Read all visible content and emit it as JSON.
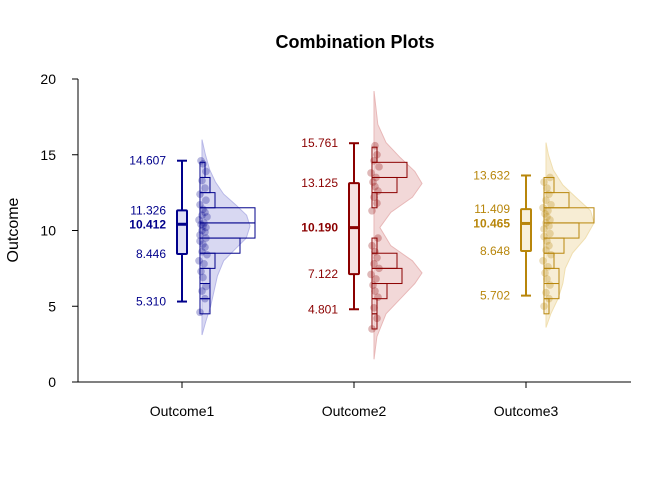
{
  "chart_data": {
    "type": "box-violin-histogram",
    "title": "Combination Plots",
    "ylabel": "Outcome",
    "xlabel": "",
    "ylim": [
      0,
      20
    ],
    "yticks": [
      0,
      5,
      10,
      15,
      20
    ],
    "grid": false,
    "categories": [
      "Outcome1",
      "Outcome2",
      "Outcome3"
    ],
    "series": [
      {
        "name": "Outcome1",
        "color": "#00008B",
        "fill": "#B8B8E8",
        "stats": {
          "max": "14.607",
          "q3": "11.326",
          "median": "10.412",
          "q1": "8.446",
          "min": "5.310"
        },
        "values": {
          "max": 14.607,
          "q3": 11.326,
          "median": 10.412,
          "q1": 8.446,
          "min": 5.31
        },
        "points": [
          4.6,
          5.5,
          6.0,
          6.3,
          6.9,
          7.3,
          7.8,
          8.0,
          8.4,
          8.6,
          8.9,
          9.1,
          9.3,
          9.5,
          9.7,
          9.9,
          10.0,
          10.2,
          10.3,
          10.4,
          10.5,
          10.7,
          10.9,
          11.0,
          11.2,
          11.4,
          11.7,
          12.0,
          12.4,
          12.8,
          13.3,
          13.9,
          14.4,
          14.6
        ],
        "hist": [
          {
            "from": 4.5,
            "to": 5.5,
            "count": 2
          },
          {
            "from": 5.5,
            "to": 6.5,
            "count": 2
          },
          {
            "from": 6.5,
            "to": 7.5,
            "count": 2
          },
          {
            "from": 7.5,
            "to": 8.5,
            "count": 3
          },
          {
            "from": 8.5,
            "to": 9.5,
            "count": 8
          },
          {
            "from": 9.5,
            "to": 10.5,
            "count": 11
          },
          {
            "from": 10.5,
            "to": 11.5,
            "count": 11
          },
          {
            "from": 11.5,
            "to": 12.5,
            "count": 3
          },
          {
            "from": 12.5,
            "to": 13.5,
            "count": 2
          },
          {
            "from": 13.5,
            "to": 14.5,
            "count": 1
          }
        ],
        "density": [
          [
            3.1,
            0.0
          ],
          [
            4.0,
            0.08
          ],
          [
            5.0,
            0.18
          ],
          [
            6.0,
            0.25
          ],
          [
            7.0,
            0.32
          ],
          [
            8.0,
            0.45
          ],
          [
            8.8,
            0.7
          ],
          [
            9.5,
            0.92
          ],
          [
            10.3,
            1.0
          ],
          [
            11.0,
            0.93
          ],
          [
            11.7,
            0.7
          ],
          [
            12.4,
            0.45
          ],
          [
            13.2,
            0.28
          ],
          [
            14.0,
            0.16
          ],
          [
            15.0,
            0.07
          ],
          [
            16.0,
            0.0
          ]
        ]
      },
      {
        "name": "Outcome2",
        "color": "#8B0000",
        "fill": "#E8B8B8",
        "stats": {
          "max": "15.761",
          "q3": "13.125",
          "median": "10.190",
          "q1": "7.122",
          "min": "4.801"
        },
        "values": {
          "max": 15.761,
          "q3": 13.125,
          "median": 10.19,
          "q1": 7.122,
          "min": 4.801
        },
        "points": [
          3.5,
          4.2,
          4.9,
          5.6,
          6.0,
          6.4,
          6.8,
          7.1,
          7.5,
          7.8,
          8.2,
          8.6,
          9.0,
          9.5,
          11.3,
          11.8,
          12.2,
          12.6,
          12.9,
          13.2,
          13.5,
          13.8,
          14.2,
          14.6,
          15.0,
          15.6
        ],
        "hist": [
          {
            "from": 3.5,
            "to": 4.5,
            "count": 1
          },
          {
            "from": 4.5,
            "to": 5.5,
            "count": 1
          },
          {
            "from": 5.5,
            "to": 6.5,
            "count": 3
          },
          {
            "from": 6.5,
            "to": 7.5,
            "count": 6
          },
          {
            "from": 7.5,
            "to": 8.5,
            "count": 5
          },
          {
            "from": 8.5,
            "to": 9.5,
            "count": 1
          },
          {
            "from": 11.5,
            "to": 12.5,
            "count": 1
          },
          {
            "from": 12.5,
            "to": 13.5,
            "count": 5
          },
          {
            "from": 13.5,
            "to": 14.5,
            "count": 7
          },
          {
            "from": 14.5,
            "to": 15.5,
            "count": 1
          }
        ],
        "density": [
          [
            1.5,
            0.0
          ],
          [
            3.0,
            0.06
          ],
          [
            4.5,
            0.25
          ],
          [
            5.5,
            0.55
          ],
          [
            6.5,
            0.85
          ],
          [
            7.2,
            1.0
          ],
          [
            8.0,
            0.8
          ],
          [
            9.0,
            0.35
          ],
          [
            10.2,
            0.12
          ],
          [
            11.2,
            0.35
          ],
          [
            12.2,
            0.8
          ],
          [
            13.1,
            1.0
          ],
          [
            13.9,
            0.85
          ],
          [
            14.8,
            0.55
          ],
          [
            15.8,
            0.25
          ],
          [
            17.0,
            0.08
          ],
          [
            19.2,
            0.0
          ]
        ]
      },
      {
        "name": "Outcome3",
        "color": "#B8860B",
        "fill": "#F0DFB0",
        "stats": {
          "max": "13.632",
          "q3": "11.409",
          "median": "10.465",
          "q1": "8.648",
          "min": "5.702"
        },
        "values": {
          "max": 13.632,
          "q3": 11.409,
          "median": 10.465,
          "q1": 8.648,
          "min": 5.702
        },
        "points": [
          5.0,
          5.5,
          5.9,
          6.4,
          6.8,
          7.2,
          7.6,
          8.0,
          8.4,
          8.7,
          9.0,
          9.3,
          9.6,
          9.8,
          10.1,
          10.3,
          10.5,
          10.7,
          10.9,
          11.1,
          11.3,
          11.5,
          11.7,
          12.0,
          12.4,
          12.8,
          13.2,
          13.5
        ],
        "hist": [
          {
            "from": 4.5,
            "to": 5.5,
            "count": 1
          },
          {
            "from": 5.5,
            "to": 6.5,
            "count": 3
          },
          {
            "from": 6.5,
            "to": 7.5,
            "count": 3
          },
          {
            "from": 7.5,
            "to": 8.5,
            "count": 2
          },
          {
            "from": 8.5,
            "to": 9.5,
            "count": 4
          },
          {
            "from": 9.5,
            "to": 10.5,
            "count": 7
          },
          {
            "from": 10.5,
            "to": 11.5,
            "count": 10
          },
          {
            "from": 11.5,
            "to": 12.5,
            "count": 5
          },
          {
            "from": 12.5,
            "to": 13.5,
            "count": 2
          }
        ],
        "density": [
          [
            3.6,
            0.0
          ],
          [
            4.5,
            0.1
          ],
          [
            5.5,
            0.25
          ],
          [
            6.5,
            0.35
          ],
          [
            7.5,
            0.4
          ],
          [
            8.5,
            0.55
          ],
          [
            9.5,
            0.82
          ],
          [
            10.5,
            1.0
          ],
          [
            11.3,
            0.93
          ],
          [
            12.2,
            0.62
          ],
          [
            13.0,
            0.35
          ],
          [
            14.0,
            0.15
          ],
          [
            15.0,
            0.05
          ],
          [
            15.8,
            0.0
          ]
        ]
      }
    ]
  }
}
